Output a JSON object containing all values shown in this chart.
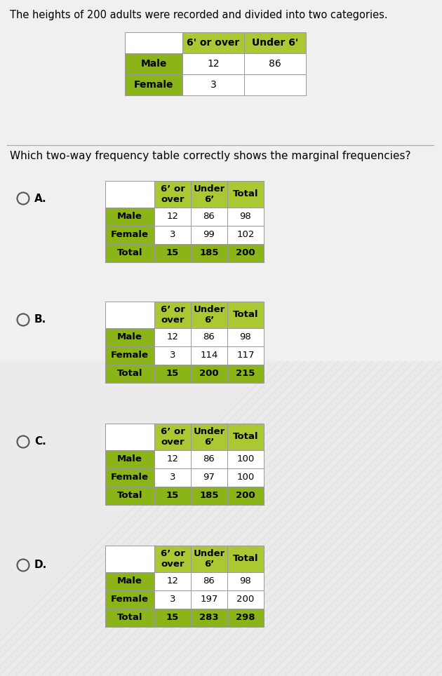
{
  "bg_color": "#f0f0f0",
  "intro_text": "The heights of 200 adults were recorded and divided into two categories.",
  "question_text": "Which two-way frequency table correctly shows the marginal frequencies?",
  "green_header": "#aac832",
  "green_row": "#8ab418",
  "white_cell": "#ffffff",
  "source_table": {
    "headers": [
      "",
      "6' or over",
      "Under 6'"
    ],
    "rows": [
      [
        "Male",
        "12",
        "86"
      ],
      [
        "Female",
        "3",
        ""
      ]
    ]
  },
  "options": [
    {
      "label": "A.",
      "headers": [
        "",
        "6’ or\nover",
        "Under\n6’",
        "Total"
      ],
      "rows": [
        [
          "Male",
          "12",
          "86",
          "98"
        ],
        [
          "Female",
          "3",
          "99",
          "102"
        ],
        [
          "Total",
          "15",
          "185",
          "200"
        ]
      ]
    },
    {
      "label": "B.",
      "headers": [
        "",
        "6’ or\nover",
        "Under\n6’",
        "Total"
      ],
      "rows": [
        [
          "Male",
          "12",
          "86",
          "98"
        ],
        [
          "Female",
          "3",
          "114",
          "117"
        ],
        [
          "Total",
          "15",
          "200",
          "215"
        ]
      ]
    },
    {
      "label": "C.",
      "headers": [
        "",
        "6’ or\nover",
        "Under\n6’",
        "Total"
      ],
      "rows": [
        [
          "Male",
          "12",
          "86",
          "100"
        ],
        [
          "Female",
          "3",
          "97",
          "100"
        ],
        [
          "Total",
          "15",
          "185",
          "200"
        ]
      ]
    },
    {
      "label": "D.",
      "headers": [
        "",
        "6’ or\nover",
        "Under\n6’",
        "Total"
      ],
      "rows": [
        [
          "Male",
          "12",
          "86",
          "98"
        ],
        [
          "Female",
          "3",
          "197",
          "200"
        ],
        [
          "Total",
          "15",
          "283",
          "298"
        ]
      ]
    }
  ]
}
